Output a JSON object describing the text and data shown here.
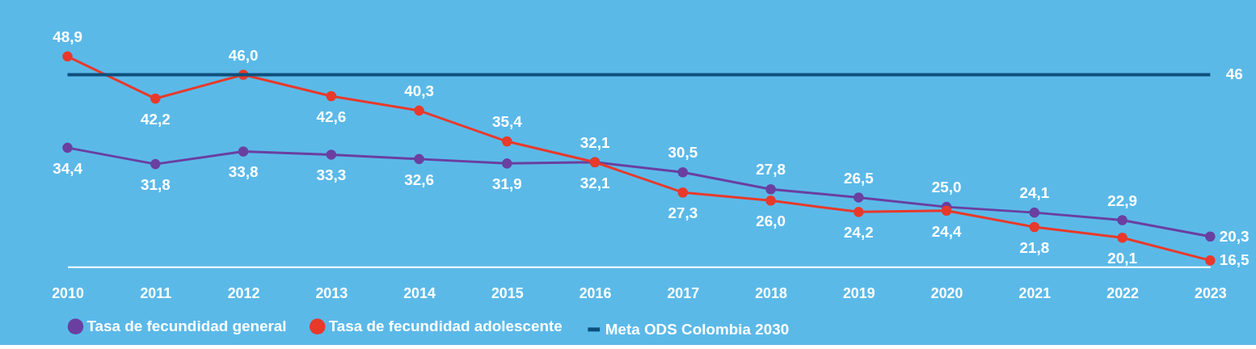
{
  "chart_data": {
    "type": "line",
    "categories": [
      "2010",
      "2011",
      "2012",
      "2013",
      "2014",
      "2015",
      "2016",
      "2017",
      "2018",
      "2019",
      "2020",
      "2021",
      "2022",
      "2023"
    ],
    "series": [
      {
        "name": "Tasa de fecundidad general",
        "color": "#6a3fa0",
        "values": [
          34.4,
          31.8,
          33.8,
          33.3,
          32.6,
          31.9,
          32.1,
          30.5,
          27.8,
          26.5,
          25.0,
          24.1,
          22.9,
          20.3
        ],
        "value_labels": [
          "34,4",
          "31,8",
          "33,8",
          "33,3",
          "32,6",
          "31,9",
          "32,1",
          "30,5",
          "27,8",
          "26,5",
          "25,0",
          "24,1",
          "22,9",
          "20,3"
        ]
      },
      {
        "name": "Tasa de fecundidad adolescente",
        "color": "#e8392a",
        "values": [
          48.9,
          42.2,
          46.0,
          42.6,
          40.3,
          35.4,
          32.1,
          27.3,
          26.0,
          24.2,
          24.4,
          21.8,
          20.1,
          16.5
        ],
        "value_labels": [
          "48,9",
          "42,2",
          "46,0",
          "42,6",
          "40,3",
          "35,4",
          "32,1",
          "27,3",
          "26,0",
          "24,2",
          "24,4",
          "21,8",
          "20,1",
          "16,5"
        ]
      },
      {
        "name": "Meta ODS Colombia 2030",
        "color": "#0d4f7c",
        "marker": "none",
        "values": [
          46,
          46,
          46,
          46,
          46,
          46,
          46,
          46,
          46,
          46,
          46,
          46,
          46,
          46
        ],
        "value_labels": [
          null,
          null,
          null,
          null,
          null,
          null,
          null,
          null,
          null,
          null,
          null,
          null,
          null,
          "46"
        ]
      }
    ],
    "tick_labels": "x",
    "marker": "circle",
    "line_style": "solid",
    "legend": "bottom"
  }
}
